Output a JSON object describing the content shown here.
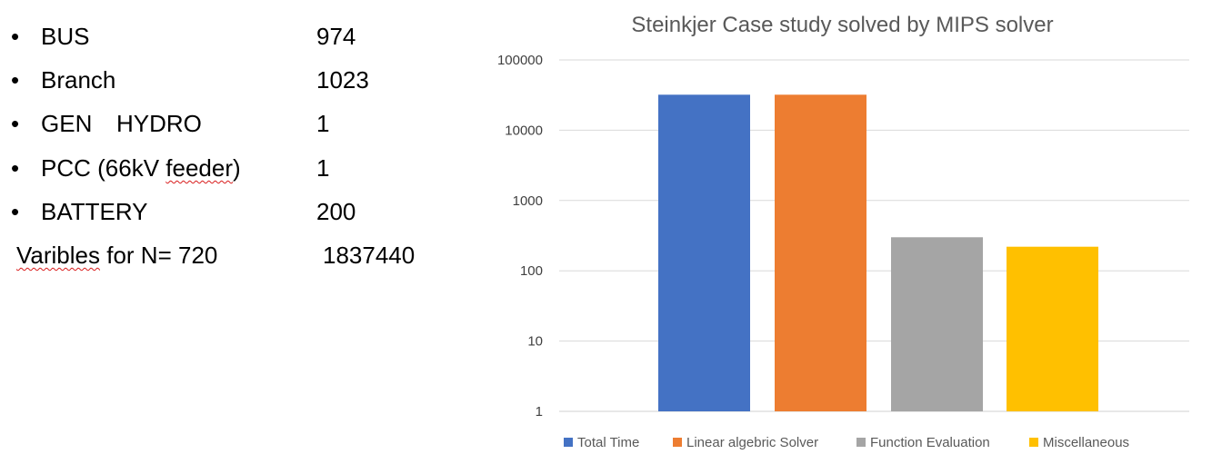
{
  "stats": {
    "items": [
      {
        "label": "BUS",
        "value": "974"
      },
      {
        "label": "Branch",
        "value": "1023"
      },
      {
        "label_a": "GEN",
        "label_b": "HYDRO",
        "value": "1"
      },
      {
        "label_pre": "PCC (66kV ",
        "label_spell": "feeder",
        "label_post": ")",
        "value": "1"
      },
      {
        "label": "BATTERY",
        "value": "200"
      }
    ],
    "variables": {
      "label_spell": "Varibles",
      "label_post": " for N= 720",
      "value": "1837440"
    },
    "bullet_char": "•"
  },
  "chart_data": {
    "type": "bar",
    "title": "Steinkjer Case study solved by MIPS solver",
    "yscale": "log",
    "ylim": [
      1,
      100000
    ],
    "yticks": [
      "1",
      "10",
      "100",
      "1000",
      "10000",
      "100000"
    ],
    "grid": true,
    "legend_position": "bottom",
    "series": [
      {
        "name": "Total Time",
        "value": 32000,
        "color": "#4472C4"
      },
      {
        "name": "Linear algebric Solver",
        "value": 32000,
        "color": "#ED7D31"
      },
      {
        "name": "Function Evaluation",
        "value": 300,
        "color": "#A5A5A5"
      },
      {
        "name": "Miscellaneous",
        "value": 220,
        "color": "#FFC000"
      }
    ]
  }
}
